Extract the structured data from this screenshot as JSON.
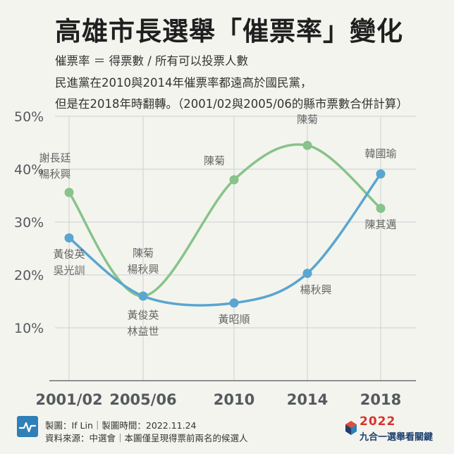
{
  "header": {
    "title": "高雄市長選舉「催票率」變化",
    "line1": "催票率 ＝ 得票數 / 所有可以投票人數",
    "line2": "民進黨在2010與2014年催票率都遠高於國民黨，",
    "line3": "但是在2018年時翻轉。（2001/02與2005/06的縣市票數合併計算）"
  },
  "colors": {
    "blue": "#5aa6cf",
    "green": "#87c38a",
    "grid": "#c9cfd4",
    "axis_text": "#555a60",
    "label_text": "#666666"
  },
  "chart_data": {
    "type": "line",
    "categories": [
      "2001/02",
      "2005/06",
      "2010",
      "2014",
      "2018"
    ],
    "ylim": [
      0,
      50
    ],
    "yticks": [
      10,
      20,
      30,
      40,
      50
    ],
    "ytick_labels": [
      "10%",
      "20%",
      "30%",
      "40%",
      "50%"
    ],
    "grid": true,
    "series": [
      {
        "color": "#87c38a",
        "values": [
          35.6,
          16.0,
          38.0,
          44.5,
          32.6
        ],
        "labels": [
          [
            "謝長廷",
            "楊秋興"
          ],
          [
            "陳菊",
            "楊秋興"
          ],
          [
            "陳菊"
          ],
          [
            "陳菊"
          ],
          [
            "陳其邁"
          ]
        ]
      },
      {
        "color": "#5aa6cf",
        "values": [
          27.0,
          16.0,
          14.7,
          20.3,
          39.1
        ],
        "labels": [
          [
            "黃俊英",
            "吳光訓"
          ],
          [
            "黃俊英",
            "林益世"
          ],
          [
            "黃昭順"
          ],
          [
            "楊秋興"
          ],
          [
            "韓國瑜"
          ]
        ]
      }
    ]
  },
  "footer": {
    "line1": "製圖：If Lin｜製圖時間：2022.11.24",
    "line2": "資料來源：中選會｜本圖僅呈現得票前兩名的候選人",
    "brand_year": "2022",
    "brand_name": "九合一選舉看關鍵"
  }
}
